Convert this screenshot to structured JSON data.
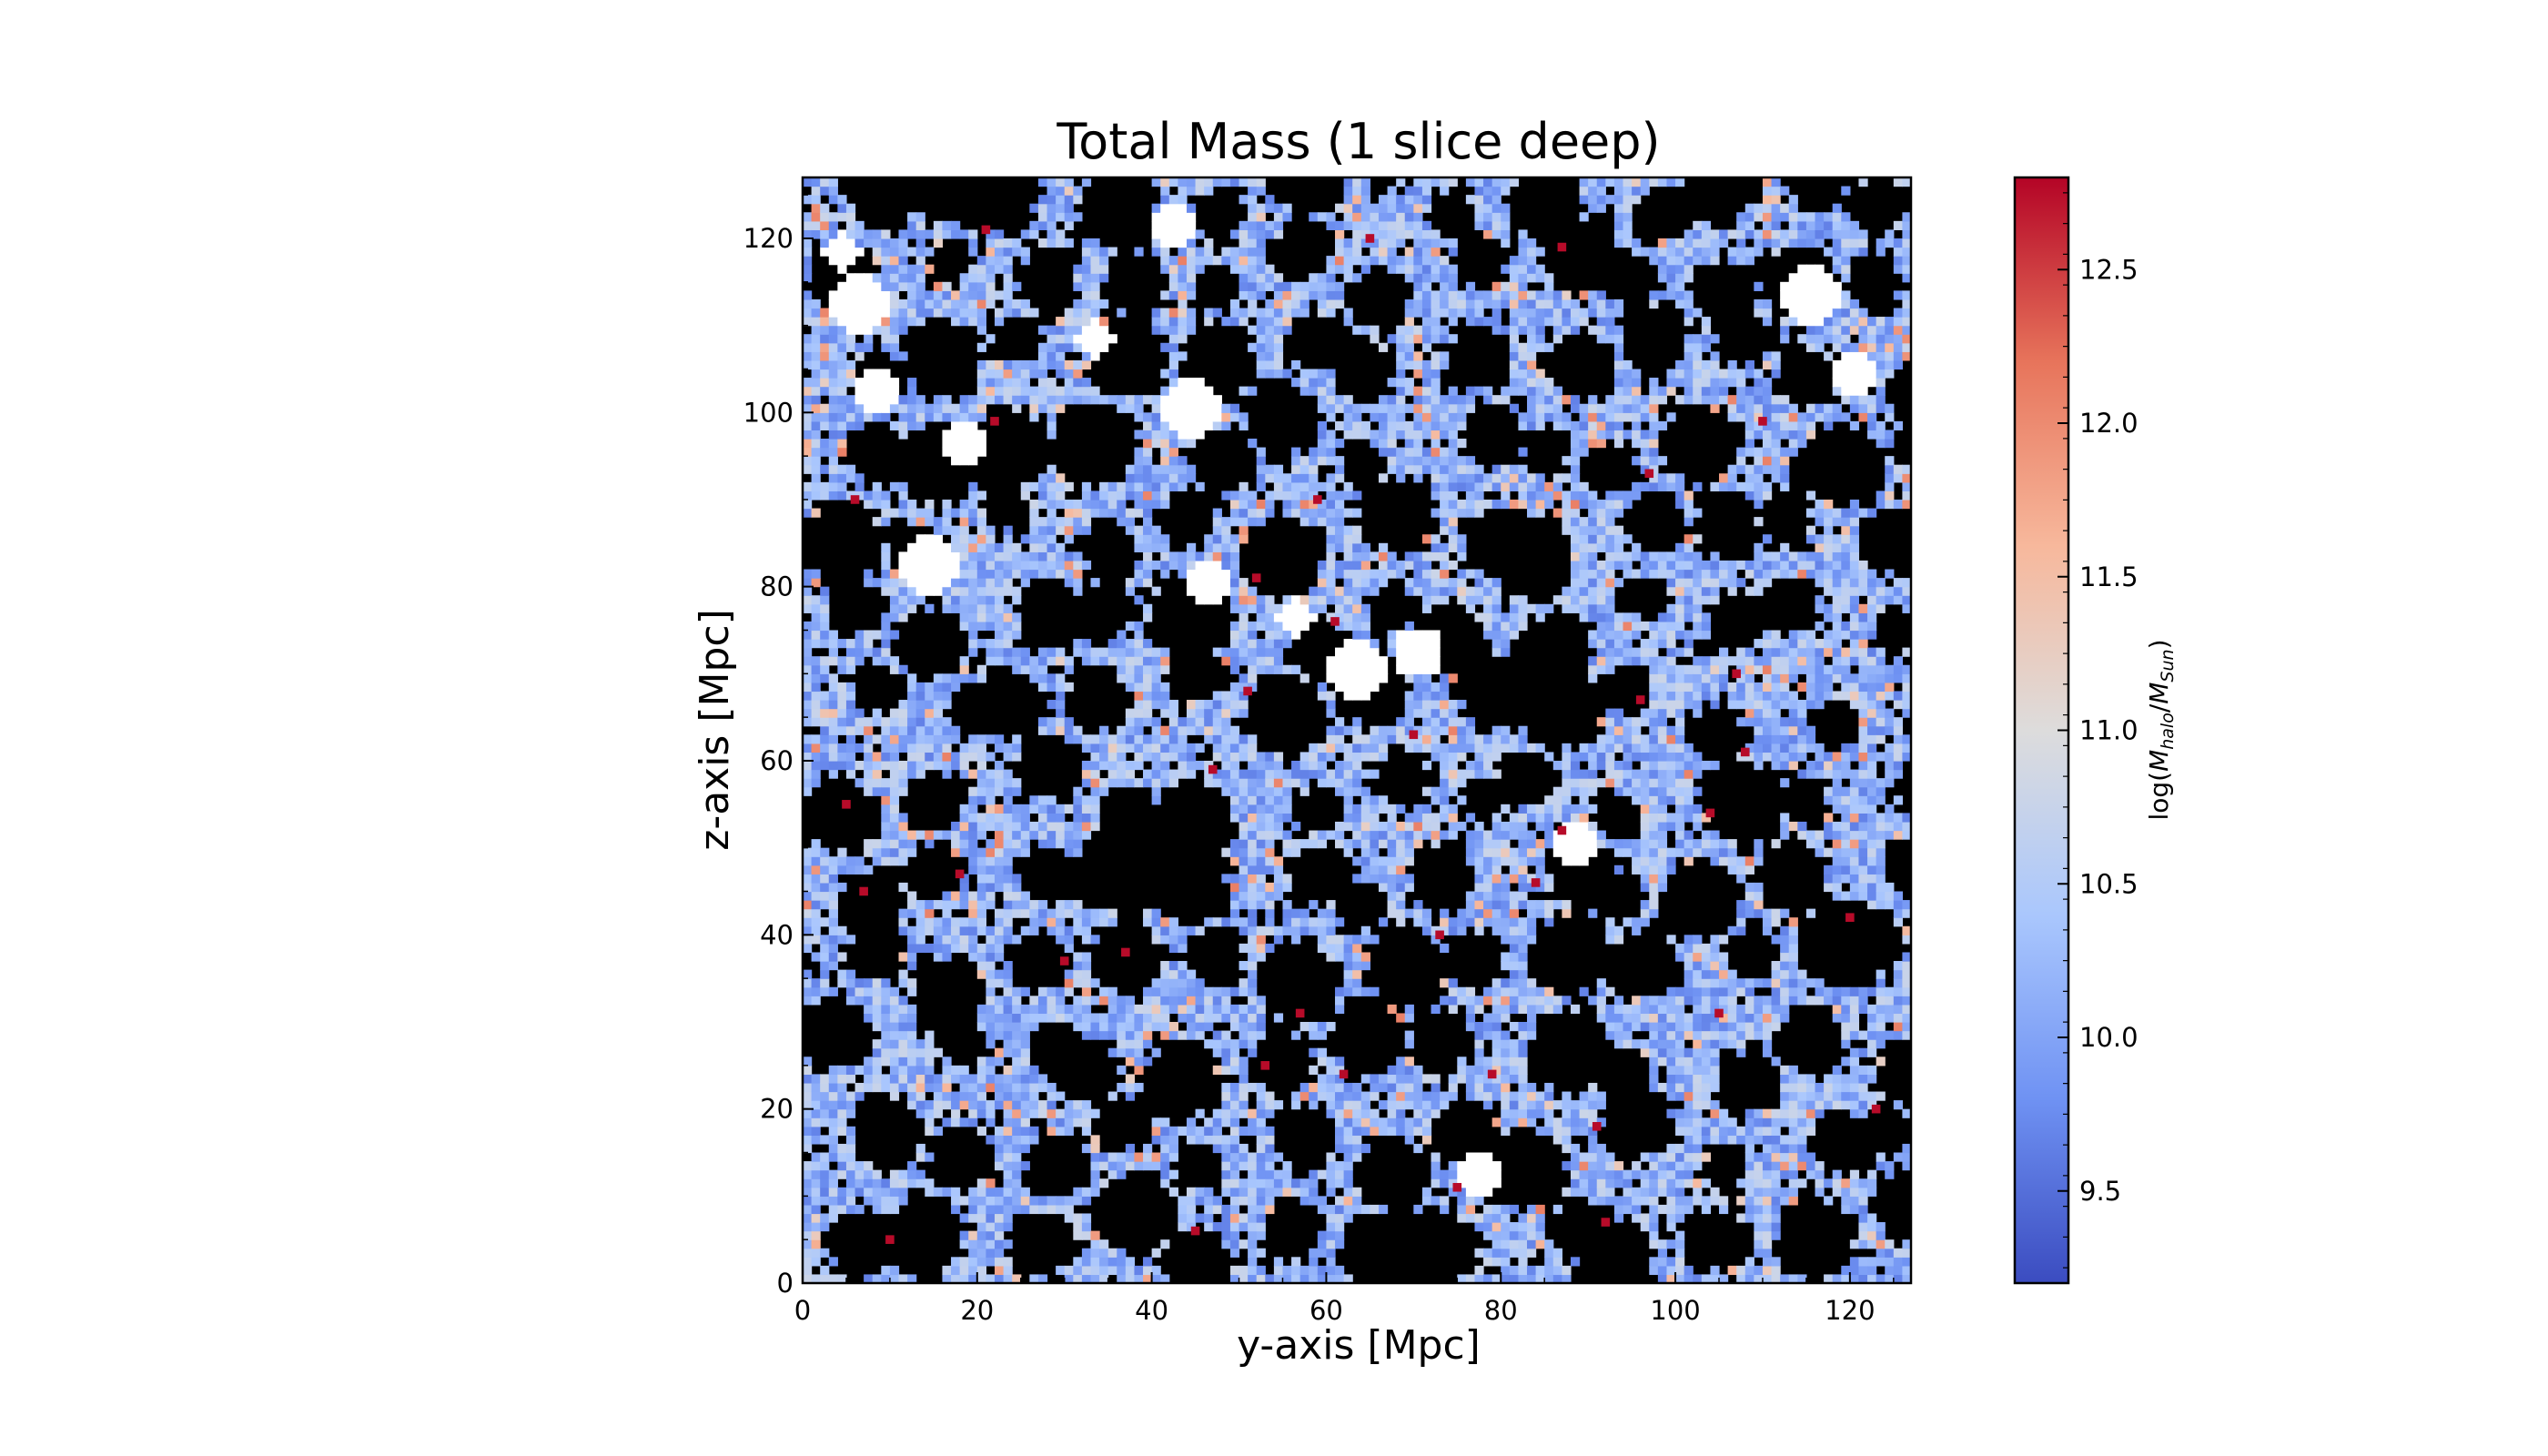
{
  "chart_data": {
    "type": "heatmap",
    "title": "Total Mass (1 slice deep)",
    "xlabel": "y-axis [Mpc]",
    "ylabel": "z-axis [Mpc]",
    "xlim": [
      0,
      127
    ],
    "ylim": [
      0,
      127
    ],
    "xticks": [
      "0",
      "20",
      "40",
      "60",
      "80",
      "100",
      "120"
    ],
    "yticks": [
      "0",
      "20",
      "40",
      "60",
      "80",
      "100",
      "120"
    ],
    "colorbar": {
      "label": "log(M_halo/M_Sun)",
      "range": [
        9.2,
        12.8
      ],
      "ticks": [
        "9.5",
        "10.0",
        "10.5",
        "11.0",
        "11.5",
        "12.0",
        "12.5"
      ],
      "colormap": "coolwarm",
      "cmap_stops": [
        "#3b4cc0",
        "#6f92f3",
        "#aac7fd",
        "#dddcdc",
        "#f7b89c",
        "#e7745b",
        "#b40426"
      ]
    },
    "empty_cell_color": "#000000",
    "grid": false,
    "massive_halos": [
      {
        "y": 5,
        "z": 55
      },
      {
        "y": 6,
        "z": 90
      },
      {
        "y": 7,
        "z": 45
      },
      {
        "y": 10,
        "z": 5
      },
      {
        "y": 18,
        "z": 47
      },
      {
        "y": 21,
        "z": 121
      },
      {
        "y": 22,
        "z": 99
      },
      {
        "y": 30,
        "z": 37
      },
      {
        "y": 37,
        "z": 38
      },
      {
        "y": 45,
        "z": 6
      },
      {
        "y": 47,
        "z": 59
      },
      {
        "y": 51,
        "z": 68
      },
      {
        "y": 52,
        "z": 81
      },
      {
        "y": 53,
        "z": 25
      },
      {
        "y": 57,
        "z": 31
      },
      {
        "y": 59,
        "z": 90
      },
      {
        "y": 61,
        "z": 76
      },
      {
        "y": 62,
        "z": 24
      },
      {
        "y": 65,
        "z": 120
      },
      {
        "y": 70,
        "z": 63
      },
      {
        "y": 73,
        "z": 40
      },
      {
        "y": 75,
        "z": 11
      },
      {
        "y": 79,
        "z": 24
      },
      {
        "y": 84,
        "z": 46
      },
      {
        "y": 87,
        "z": 52
      },
      {
        "y": 87,
        "z": 119
      },
      {
        "y": 91,
        "z": 18
      },
      {
        "y": 92,
        "z": 7
      },
      {
        "y": 96,
        "z": 67
      },
      {
        "y": 97,
        "z": 93
      },
      {
        "y": 104,
        "z": 54
      },
      {
        "y": 105,
        "z": 31
      },
      {
        "y": 107,
        "z": 70
      },
      {
        "y": 108,
        "z": 61
      },
      {
        "y": 110,
        "z": 99
      },
      {
        "y": 120,
        "z": 42
      },
      {
        "y": 123,
        "z": 20
      }
    ]
  }
}
